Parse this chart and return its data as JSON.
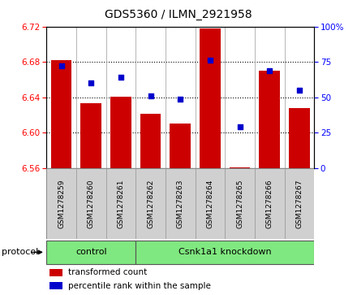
{
  "title": "GDS5360 / ILMN_2921958",
  "samples": [
    "GSM1278259",
    "GSM1278260",
    "GSM1278261",
    "GSM1278262",
    "GSM1278263",
    "GSM1278264",
    "GSM1278265",
    "GSM1278266",
    "GSM1278267"
  ],
  "bar_values": [
    6.682,
    6.633,
    6.641,
    6.621,
    6.61,
    6.718,
    6.561,
    6.67,
    6.628
  ],
  "percentile_values": [
    72,
    60,
    64,
    51,
    49,
    76,
    29,
    69,
    55
  ],
  "bar_color": "#CC0000",
  "dot_color": "#0000CC",
  "ylim_left": [
    6.56,
    6.72
  ],
  "ylim_right": [
    0,
    100
  ],
  "yticks_left": [
    6.56,
    6.6,
    6.64,
    6.68,
    6.72
  ],
  "yticks_right": [
    0,
    25,
    50,
    75,
    100
  ],
  "ytick_labels_right": [
    "0",
    "25",
    "50",
    "75",
    "100%"
  ],
  "grid_lines": [
    6.6,
    6.64,
    6.68
  ],
  "n_control": 3,
  "n_knockdown": 6,
  "control_label": "control",
  "knockdown_label": "Csnk1a1 knockdown",
  "protocol_label": "protocol",
  "legend_bar_label": "transformed count",
  "legend_dot_label": "percentile rank within the sample",
  "bar_bottom": 6.56,
  "bar_width": 0.7,
  "gray_box_color": "#D0D0D0",
  "green_box_color": "#80E880"
}
